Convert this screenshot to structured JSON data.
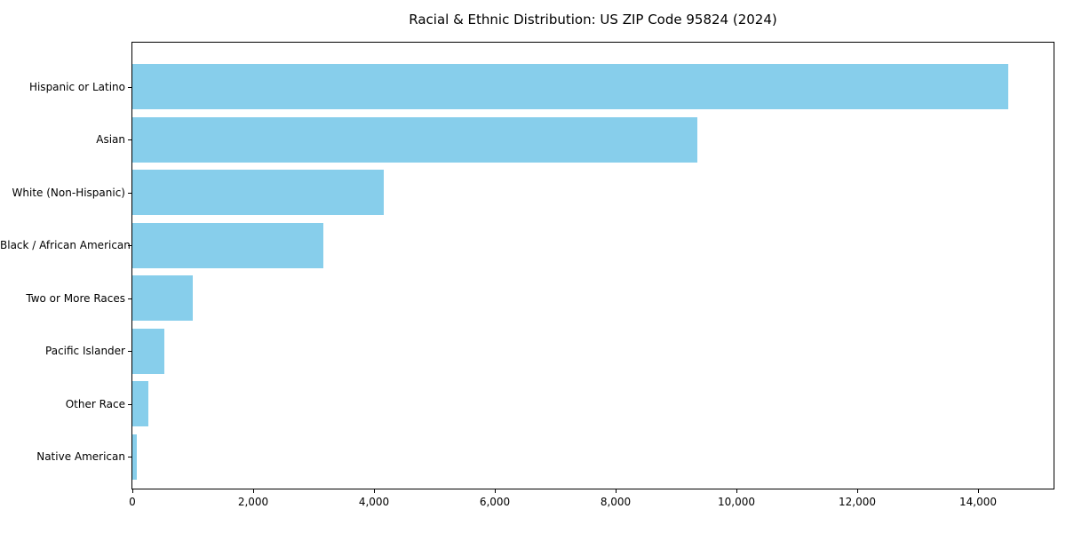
{
  "chart_data": {
    "type": "bar",
    "orientation": "horizontal",
    "title": "Racial & Ethnic Distribution: US ZIP Code 95824 (2024)",
    "categories": [
      "Hispanic or Latino",
      "Asian",
      "White (Non-Hispanic)",
      "Black / African American",
      "Two or More Races",
      "Pacific Islander",
      "Other Race",
      "Native American"
    ],
    "values": [
      14500,
      9360,
      4160,
      3160,
      1000,
      530,
      270,
      70
    ],
    "xlabel": "",
    "ylabel": "",
    "xlim": [
      0,
      15250
    ],
    "xticks": [
      0,
      2000,
      4000,
      6000,
      8000,
      10000,
      12000,
      14000
    ],
    "xtick_labels": [
      "0",
      "2,000",
      "4,000",
      "6,000",
      "8,000",
      "10,000",
      "12,000",
      "14,000"
    ],
    "bar_color": "#87CEEB",
    "axis_color": "#000000",
    "background_color": "#FFFFFF",
    "grid": false,
    "legend": false
  }
}
